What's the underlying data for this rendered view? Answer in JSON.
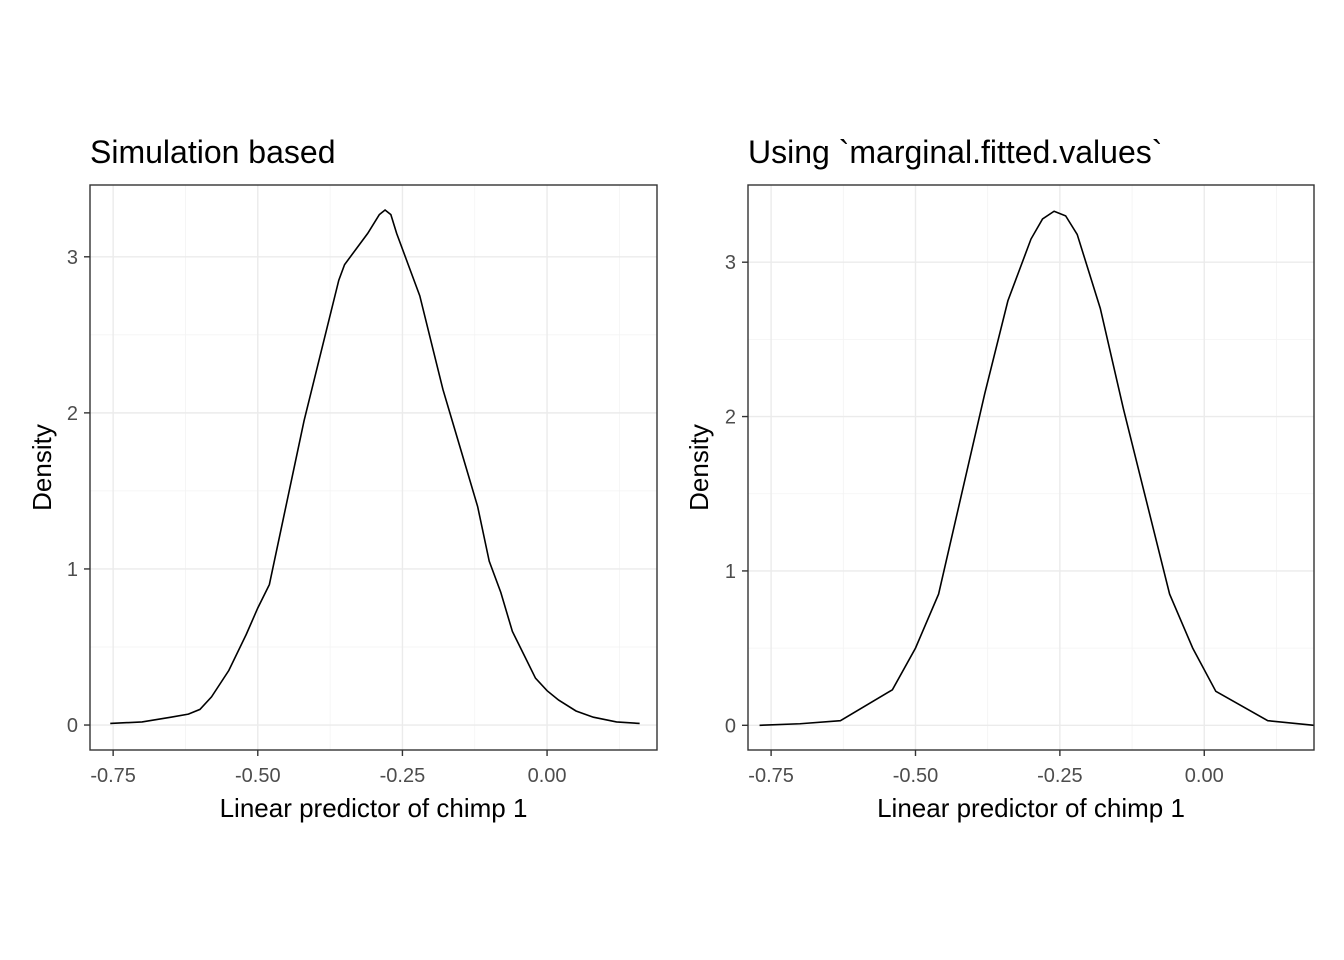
{
  "chart_data": [
    {
      "type": "line",
      "title": "Simulation based",
      "xlabel": "Linear predictor of chimp 1",
      "ylabel": "Density",
      "xlim": [
        -0.79,
        0.19
      ],
      "ylim": [
        -0.16,
        3.46
      ],
      "xticks": [
        -0.75,
        -0.5,
        -0.25,
        0.0
      ],
      "xtick_labels": [
        "-0.75",
        "-0.50",
        "-0.25",
        "0.00"
      ],
      "yticks": [
        0,
        1,
        2,
        3
      ],
      "ytick_labels": [
        "0",
        "1",
        "2",
        "3"
      ],
      "grid": true,
      "series": [
        {
          "x": [
            -0.755,
            -0.7,
            -0.65,
            -0.62,
            -0.6,
            -0.58,
            -0.55,
            -0.52,
            -0.5,
            -0.48,
            -0.46,
            -0.44,
            -0.42,
            -0.4,
            -0.38,
            -0.36,
            -0.35,
            -0.33,
            -0.31,
            -0.29,
            -0.28,
            -0.27,
            -0.26,
            -0.24,
            -0.22,
            -0.2,
            -0.18,
            -0.16,
            -0.14,
            -0.12,
            -0.1,
            -0.08,
            -0.06,
            -0.04,
            -0.02,
            0.0,
            0.02,
            0.05,
            0.08,
            0.12,
            0.16
          ],
          "y": [
            0.01,
            0.02,
            0.05,
            0.07,
            0.1,
            0.18,
            0.35,
            0.58,
            0.75,
            0.9,
            1.25,
            1.6,
            1.95,
            2.25,
            2.55,
            2.85,
            2.95,
            3.05,
            3.15,
            3.27,
            3.3,
            3.27,
            3.15,
            2.95,
            2.75,
            2.45,
            2.15,
            1.9,
            1.65,
            1.4,
            1.05,
            0.85,
            0.6,
            0.45,
            0.3,
            0.22,
            0.16,
            0.09,
            0.05,
            0.02,
            0.01
          ]
        }
      ]
    },
    {
      "type": "line",
      "title": "Using `marginal.fitted.values`",
      "xlabel": "Linear predictor of chimp 1",
      "ylabel": "Density",
      "xlim": [
        -0.79,
        0.19
      ],
      "ylim": [
        -0.16,
        3.5
      ],
      "xticks": [
        -0.75,
        -0.5,
        -0.25,
        0.0
      ],
      "xtick_labels": [
        "-0.75",
        "-0.50",
        "-0.25",
        "0.00"
      ],
      "yticks": [
        0,
        1,
        2,
        3
      ],
      "ytick_labels": [
        "0",
        "1",
        "2",
        "3"
      ],
      "grid": true,
      "series": [
        {
          "x": [
            -0.77,
            -0.7,
            -0.63,
            -0.54,
            -0.5,
            -0.46,
            -0.42,
            -0.38,
            -0.34,
            -0.3,
            -0.28,
            -0.26,
            -0.24,
            -0.22,
            -0.18,
            -0.14,
            -0.1,
            -0.06,
            -0.02,
            0.02,
            0.11,
            0.19
          ],
          "y": [
            0.0,
            0.01,
            0.03,
            0.23,
            0.5,
            0.85,
            1.5,
            2.15,
            2.75,
            3.15,
            3.28,
            3.33,
            3.3,
            3.18,
            2.7,
            2.05,
            1.45,
            0.85,
            0.5,
            0.22,
            0.03,
            0.0
          ]
        }
      ]
    }
  ]
}
